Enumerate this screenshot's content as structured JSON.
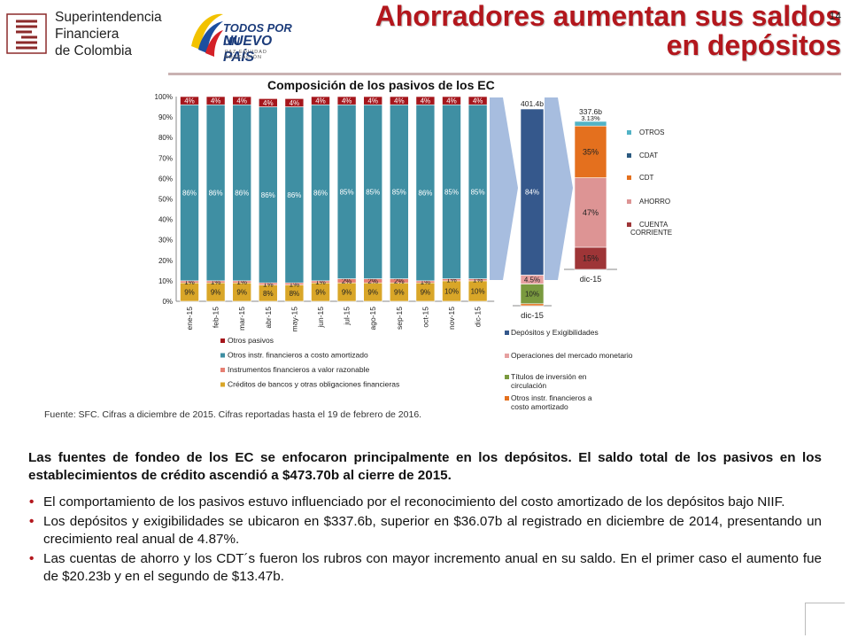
{
  "header": {
    "org_lines": [
      "Superintendencia",
      "Financiera",
      "de Colombia"
    ],
    "gov_line1": "TODOS POR UN",
    "gov_line2": "NUEVO PAÍS",
    "gov_tagline": "PAZ  EQUIDAD  EDUCACIÓN",
    "title": "Ahorradores aumentan sus saldos en depósitos"
  },
  "chart_data": [
    {
      "type": "bar",
      "stacked": true,
      "percent": true,
      "title": "Composición  de los pasivos  de los EC",
      "categories": [
        "ene-15",
        "feb-15",
        "mar-15",
        "abr-15",
        "may-15",
        "jun-15",
        "jul-15",
        "ago-15",
        "sep-15",
        "oct-15",
        "nov-15",
        "dic-15"
      ],
      "yticks": [
        "0%",
        "10%",
        "20%",
        "30%",
        "40%",
        "50%",
        "60%",
        "70%",
        "80%",
        "90%",
        "100%"
      ],
      "ylim": [
        0,
        100
      ],
      "grid": false,
      "legend_position": "bottom",
      "series": [
        {
          "name": "Créditos de bancos y otras obligaciones financieras",
          "color": "#d9a628",
          "values": [
            9,
            9,
            9,
            8,
            8,
            9,
            9,
            9,
            9,
            9,
            10,
            10
          ],
          "labels": [
            "9%",
            "9%",
            "9%",
            "8%",
            "8%",
            "9%",
            "9%",
            "9%",
            "9%",
            "9%",
            "10%",
            "10%"
          ]
        },
        {
          "name": "Instrumentos financieros a valor razonable",
          "color": "#e67f72",
          "values": [
            1,
            1,
            1,
            1,
            1,
            1,
            2,
            2,
            2,
            1,
            1,
            1
          ],
          "labels": [
            "1%",
            "1%",
            "1%",
            "1%",
            "1%",
            "1%",
            "2%",
            "2%",
            "2%",
            "1%",
            "1%",
            "1%"
          ]
        },
        {
          "name": "Otros instr. financieros a costo amortizado",
          "color": "#3f8fa3",
          "values": [
            86,
            86,
            86,
            86,
            86,
            86,
            85,
            85,
            85,
            86,
            85,
            85
          ],
          "labels": [
            "86%",
            "86%",
            "86%",
            "86%",
            "86%",
            "86%",
            "85%",
            "85%",
            "85%",
            "86%",
            "85%",
            "85%"
          ]
        },
        {
          "name": "Otros pasivos",
          "color": "#a5161c",
          "values": [
            4,
            4,
            4,
            4,
            4,
            4,
            4,
            4,
            4,
            4,
            4,
            4
          ],
          "labels": [
            "4%",
            "4%",
            "4%",
            "4%",
            "4%",
            "4%",
            "4%",
            "4%",
            "4%",
            "4%",
            "4%",
            "4%"
          ]
        }
      ]
    },
    {
      "type": "bar",
      "stacked": true,
      "categories": [
        "dic-15"
      ],
      "total_label": "401.4b",
      "legend_position": "bottom",
      "series": [
        {
          "name": "Otros instr. financieros a costo amortizado",
          "color": "#e4701e",
          "values": [
            1
          ],
          "labels": [
            ""
          ]
        },
        {
          "name": "Títulos de inversión en circulación",
          "color": "#7a9a3f",
          "values": [
            10
          ],
          "labels": [
            "10%"
          ]
        },
        {
          "name": "Operaciones del mercado monetario",
          "color": "#e6a0a0",
          "values": [
            4.5
          ],
          "labels": [
            "4.5%"
          ]
        },
        {
          "name": "Depósitos y Exigibilidades",
          "color": "#35588c",
          "values": [
            84
          ],
          "labels": [
            "84%"
          ]
        }
      ]
    },
    {
      "type": "bar",
      "stacked": true,
      "categories": [
        "dic-15"
      ],
      "total_label": "337.6b",
      "legend_position": "right",
      "series": [
        {
          "name": "CUENTA CORRIENTE",
          "color": "#9e3537",
          "values": [
            15
          ],
          "labels": [
            "15%"
          ]
        },
        {
          "name": "AHORRO",
          "color": "#dd9494",
          "values": [
            47
          ],
          "labels": [
            "47%"
          ]
        },
        {
          "name": "CDT",
          "color": "#e4701e",
          "values": [
            35
          ],
          "labels": [
            "35%"
          ]
        },
        {
          "name": "CDAT",
          "color": "#2b5a80",
          "values": [
            0
          ],
          "labels": [
            ""
          ]
        },
        {
          "name": "OTROS",
          "color": "#52b3c6",
          "values": [
            3.13
          ],
          "labels": [
            "3.13%"
          ]
        }
      ]
    }
  ],
  "source_note": "Fuente: SFC. Cifras a diciembre de 2015. Cifras reportadas hasta el 19 de febrero de 2016.",
  "body": {
    "lead": "Las fuentes de fondeo de los EC se enfocaron principalmente en los depósitos. El saldo total de los pasivos en los establecimientos de crédito ascendió a $473.70b al cierre de 2015.",
    "bullets": [
      "El comportamiento de los pasivos estuvo influenciado por el reconocimiento del costo amortizado de los depósitos bajo NIIF.",
      "Los depósitos y exigibilidades se ubicaron en $337.6b, superior en $36.07b al registrado en diciembre de 2014, presentando un crecimiento real anual de 4.87%.",
      "Las cuentas de ahorro y los CDT´s fueron los rubros con mayor incremento anual en su saldo. En el primer caso el aumento fue de $20.23b y  en el segundo de $13.47b."
    ]
  },
  "footer": {
    "page_number": "14"
  }
}
